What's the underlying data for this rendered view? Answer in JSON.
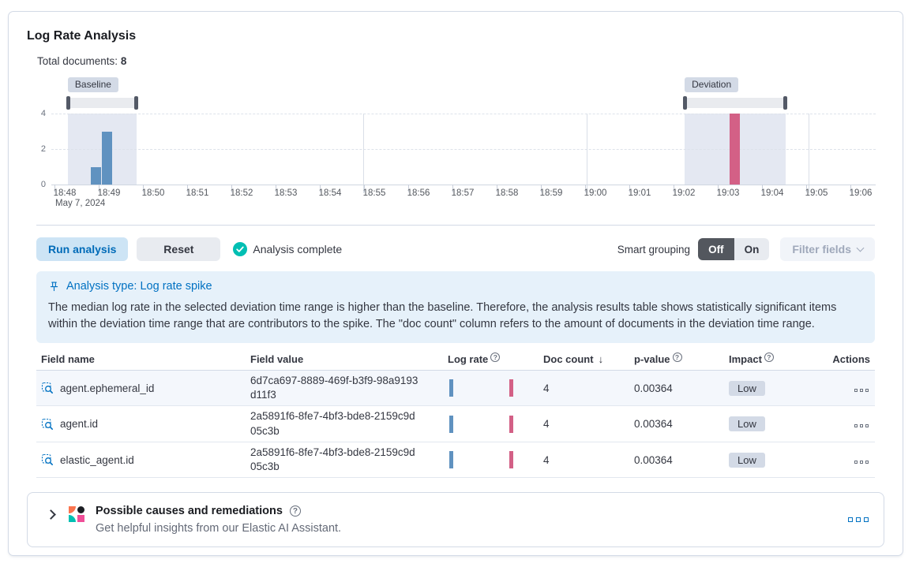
{
  "panel": {
    "title": "Log Rate Analysis",
    "total_documents_label": "Total documents:",
    "total_documents_value": "8"
  },
  "chart_data": {
    "type": "bar",
    "title": "document count histogram",
    "x_axis_date_label": "May 7, 2024",
    "y_ticks": [
      0,
      2,
      4
    ],
    "ylim": [
      0,
      4
    ],
    "x_ticks": [
      {
        "label": "18:48",
        "m": 0
      },
      {
        "label": "18:49",
        "m": 1
      },
      {
        "label": "18:50",
        "m": 2
      },
      {
        "label": "18:51",
        "m": 3
      },
      {
        "label": "18:52",
        "m": 4
      },
      {
        "label": "18:53",
        "m": 5
      },
      {
        "label": "18:54",
        "m": 6
      },
      {
        "label": "18:55",
        "m": 7
      },
      {
        "label": "18:56",
        "m": 8
      },
      {
        "label": "18:57",
        "m": 9
      },
      {
        "label": "18:58",
        "m": 10
      },
      {
        "label": "18:59",
        "m": 11
      },
      {
        "label": "19:00",
        "m": 12
      },
      {
        "label": "19:01",
        "m": 13
      },
      {
        "label": "19:02",
        "m": 14
      },
      {
        "label": "19:03",
        "m": 15
      },
      {
        "label": "19:04",
        "m": 16
      },
      {
        "label": "19:05",
        "m": 17
      },
      {
        "label": "19:06",
        "m": 18
      }
    ],
    "bars": [
      {
        "time": "18:48:35",
        "m": 0.59,
        "count": 1,
        "series": "baseline"
      },
      {
        "time": "18:48:50",
        "m": 0.84,
        "count": 3,
        "series": "baseline"
      },
      {
        "time": "19:03:05",
        "m": 15.04,
        "count": 4,
        "series": "deviation"
      }
    ],
    "brushes": [
      {
        "label": "Baseline",
        "m0": 0.07,
        "m1": 1.63
      },
      {
        "label": "Deviation",
        "m0": 14.02,
        "m1": 16.3
      }
    ],
    "colors": {
      "baseline": "#6092c0",
      "deviation": "#d36086"
    },
    "layout": {
      "vgrid_m": [
        6.75,
        11.8,
        16.82
      ],
      "legend": "none",
      "grid": "dashed-horizontal"
    }
  },
  "controls": {
    "run_analysis": "Run analysis",
    "reset": "Reset",
    "status": "Analysis complete",
    "smart_grouping_label": "Smart grouping",
    "toggle_off": "Off",
    "toggle_on": "On",
    "filter_fields": "Filter fields"
  },
  "callout": {
    "title": "Analysis type: Log rate spike",
    "body": "The median log rate in the selected deviation time range is higher than the baseline. Therefore, the analysis results table shows statistically significant items within the deviation time range that are contributors to the spike. The \"doc count\" column refers to the amount of documents in the deviation time range."
  },
  "table": {
    "columns": [
      {
        "label": "Field name"
      },
      {
        "label": "Field value"
      },
      {
        "label": "Log rate",
        "info": true
      },
      {
        "label": "Doc count",
        "sorted": "desc"
      },
      {
        "label": "p-value",
        "info": true
      },
      {
        "label": "Impact",
        "info": true
      },
      {
        "label": "Actions",
        "align": "right"
      }
    ],
    "rows": [
      {
        "field_name": "agent.ephemeral_id",
        "field_value": "6d7ca697-8889-469f-b3f9-98a9193d11f3",
        "doc_count": "4",
        "p_value": "0.00364",
        "impact": "Low"
      },
      {
        "field_name": "agent.id",
        "field_value": "2a5891f6-8fe7-4bf3-bde8-2159c9d05c3b",
        "doc_count": "4",
        "p_value": "0.00364",
        "impact": "Low"
      },
      {
        "field_name": "elastic_agent.id",
        "field_value": "2a5891f6-8fe7-4bf3-bde8-2159c9d05c3b",
        "doc_count": "4",
        "p_value": "0.00364",
        "impact": "Low"
      }
    ]
  },
  "ai_panel": {
    "title": "Possible causes and remediations",
    "subtitle": "Get helpful insights from our Elastic AI Assistant."
  }
}
